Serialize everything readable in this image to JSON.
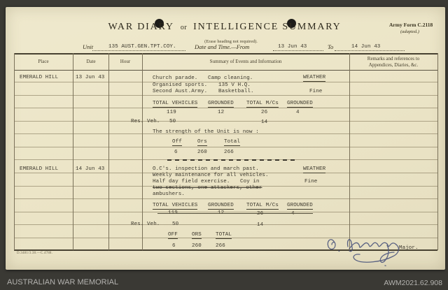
{
  "archive_bar": {
    "institution": "AUSTRALIAN WAR MEMORIAL",
    "item_id": "AWM2021.62.908"
  },
  "form": {
    "form_number_line1": "Army Form C.2118",
    "form_number_line2": "(adapted.)",
    "title_part1": "WAR DIARY",
    "title_or": "or",
    "title_part2": "INTELLIGENCE SUMMARY",
    "subtitle": "(Erase heading not required).",
    "unit_label": "Unit",
    "unit_value": "135 AUST.GEN.TPT.COY.",
    "datetime_label": "Date and Time.—From",
    "date_from": "13 Jun 43",
    "to_label": "To",
    "date_to": "14 Jun 43",
    "imprint": "D.3481/3.38.—C.4788."
  },
  "table_headers": {
    "place": "Place",
    "date": "Date",
    "hour": "Hour",
    "summary": "Summary of Events and Information",
    "remarks_line1": "Remarks and references to",
    "remarks_line2": "Appendices, Diaries, &c."
  },
  "entry1": {
    "place": "EMERALD HILL",
    "date": "13 Jun 43",
    "line1a": "Church parade.",
    "line1b": "Camp cleaning.",
    "weather_label": "WEATHER",
    "line2a": "Organised sports.",
    "line2b": "135 V H.Q.",
    "line3a": "Second Aust.Army.",
    "line3b": "Basketball.",
    "weather_value": "Fine",
    "veh_h1": "TOTAL VEHICLES",
    "veh_h2": "GROUNDED",
    "veh_h3": "TOTAL M/Cs",
    "veh_h4": "GROUNDED",
    "veh_v1": "119",
    "veh_v2": "12",
    "veh_v3": "26",
    "veh_v4": "4",
    "res_label": "Res. Veh.",
    "res_veh": "50",
    "res_mc": "14",
    "strength_line": "The strength of the Unit is now :",
    "str_h_off": "Off",
    "str_h_ors": "Ors",
    "str_h_total": "Total",
    "str_v_off": "6",
    "str_v_ors": "260",
    "str_v_total": "266"
  },
  "entry2": {
    "place": "EMERALD HILL",
    "date": "14 Jun 43",
    "line1": "O.C's. inspection and march past.",
    "weather_label": "WEATHER",
    "line2": "Weekly maintenance for all vehicles.",
    "line3a": "Half day field exercise.",
    "line3b": "Coy in",
    "weather_value": "Fine",
    "line4_struck": "two sections, one attackers, other",
    "line5": "ambushers.",
    "veh_h1": "TOTAL VEHICLES",
    "veh_h2": "GROUNDED",
    "veh_h3": "TOTAL M/Cs",
    "veh_h4": "GROUNDED",
    "veh_v1": "119",
    "veh_v2": "12",
    "veh_v3": "26",
    "veh_v4": "4",
    "res_label": "Res. Veh.",
    "res_veh": "50",
    "res_mc": "14",
    "str_h_off": "OFF",
    "str_h_ors": "ORS",
    "str_h_total": "TOTAL",
    "str_v_off": "6",
    "str_v_ors": "260",
    "str_v_total": "266",
    "signature_name": "G. Heming",
    "signature_rank": "Major."
  }
}
